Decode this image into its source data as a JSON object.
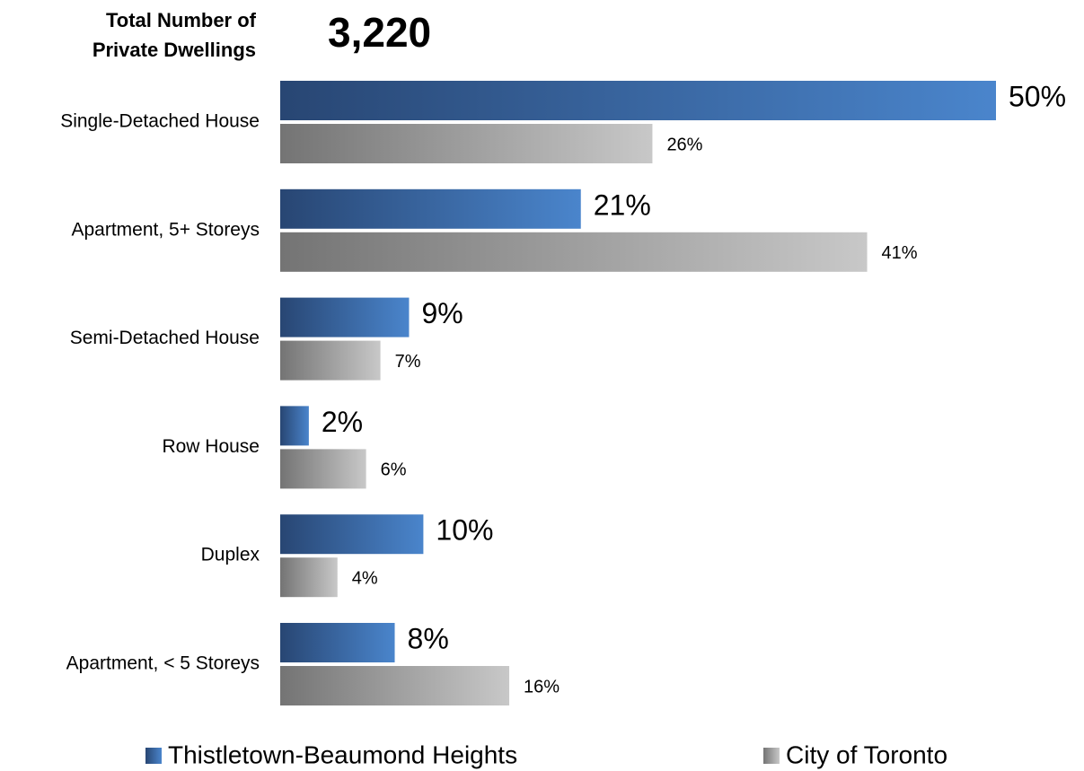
{
  "chart_data": {
    "type": "hbar",
    "header_label": "Total Number of Private Dwellings",
    "header_value": "3,220",
    "categories": [
      "Single-Detached House",
      "Apartment, 5+ Storeys",
      "Semi-Detached House",
      "Row House",
      "Duplex",
      "Apartment, < 5 Storeys"
    ],
    "series": [
      {
        "name": "Thistletown-Beaumond Heights",
        "color": "#4a85cc",
        "values": [
          50,
          21,
          9,
          2,
          10,
          8
        ],
        "value_labels": [
          "50%",
          "21%",
          "9%",
          "2%",
          "10%",
          "8%"
        ]
      },
      {
        "name": "City of Toronto",
        "color": "#c8c8c8",
        "values": [
          26,
          41,
          7,
          6,
          4,
          16
        ],
        "value_labels": [
          "26%",
          "41%",
          "7%",
          "6%",
          "4%",
          "16%"
        ]
      }
    ]
  }
}
